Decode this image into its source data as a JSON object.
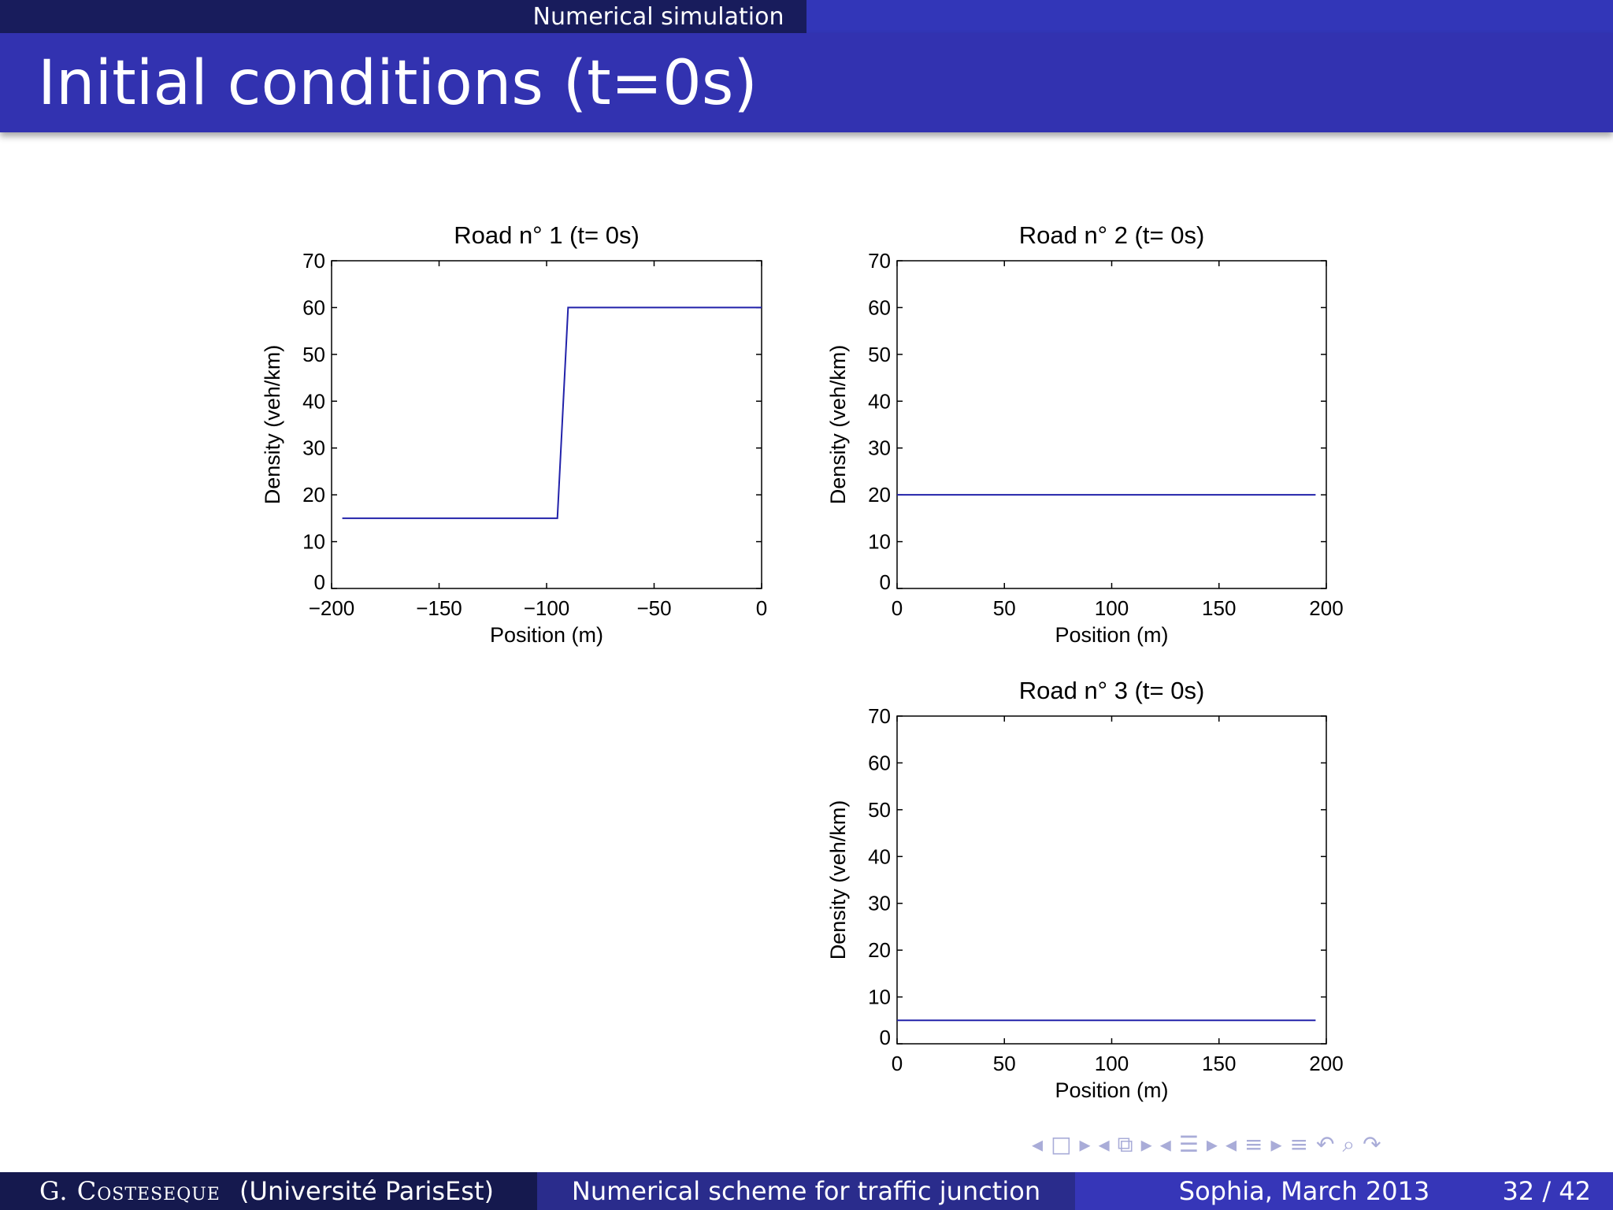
{
  "header": {
    "section": "Numerical simulation",
    "title": "Initial conditions (t=0s)"
  },
  "footer": {
    "author": "G. Costeseque",
    "affiliation": "(Université ParisEst)",
    "talk_title": "Numerical scheme for traffic junction",
    "venue": "Sophia, March 2013",
    "pages": "32 / 42"
  },
  "nav_icons": [
    "arrow-left-icon",
    "frame-icon",
    "arrow-right-icon",
    "arrow-left-icon",
    "subsection-icon",
    "arrow-right-icon",
    "arrow-left-icon",
    "section-icon",
    "arrow-right-icon",
    "arrow-left-icon",
    "align-icon",
    "arrow-right-icon",
    "align-icon",
    "undo-icon",
    "search-icon",
    "redo-icon"
  ],
  "colors": {
    "line": "#2222aa",
    "header_dark": "#181c5c",
    "header_blue": "#3232b0"
  },
  "chart_data": [
    {
      "type": "line",
      "title": "Road n° 1 (t= 0s)",
      "xlabel": "Position (m)",
      "ylabel": "Density (veh/km)",
      "xlim": [
        -200,
        0
      ],
      "ylim": [
        0,
        70
      ],
      "xticks": [
        -200,
        -150,
        -100,
        -50,
        0
      ],
      "xtick_labels": [
        "−200",
        "−150",
        "−100",
        "−50",
        "0"
      ],
      "yticks": [
        0,
        10,
        20,
        30,
        40,
        50,
        60,
        70
      ],
      "ytick_labels": [
        "0",
        "10",
        "20",
        "30",
        "40",
        "50",
        "60",
        "70"
      ],
      "series": [
        {
          "x": [
            -195,
            -95,
            -90,
            0
          ],
          "y": [
            15,
            15,
            60,
            60
          ]
        }
      ]
    },
    {
      "type": "line",
      "title": "Road n° 2 (t= 0s)",
      "xlabel": "Position (m)",
      "ylabel": "Density (veh/km)",
      "xlim": [
        0,
        200
      ],
      "ylim": [
        0,
        70
      ],
      "xticks": [
        0,
        50,
        100,
        150,
        200
      ],
      "xtick_labels": [
        "0",
        "50",
        "100",
        "150",
        "200"
      ],
      "yticks": [
        0,
        10,
        20,
        30,
        40,
        50,
        60,
        70
      ],
      "ytick_labels": [
        "0",
        "10",
        "20",
        "30",
        "40",
        "50",
        "60",
        "70"
      ],
      "series": [
        {
          "x": [
            0,
            195
          ],
          "y": [
            20,
            20
          ]
        }
      ]
    },
    {
      "type": "line",
      "title": "Road n° 3 (t= 0s)",
      "xlabel": "Position (m)",
      "ylabel": "Density (veh/km)",
      "xlim": [
        0,
        200
      ],
      "ylim": [
        0,
        70
      ],
      "xticks": [
        0,
        50,
        100,
        150,
        200
      ],
      "xtick_labels": [
        "0",
        "50",
        "100",
        "150",
        "200"
      ],
      "yticks": [
        0,
        10,
        20,
        30,
        40,
        50,
        60,
        70
      ],
      "ytick_labels": [
        "0",
        "10",
        "20",
        "30",
        "40",
        "50",
        "60",
        "70"
      ],
      "series": [
        {
          "x": [
            0,
            195
          ],
          "y": [
            5,
            5
          ]
        }
      ]
    }
  ]
}
